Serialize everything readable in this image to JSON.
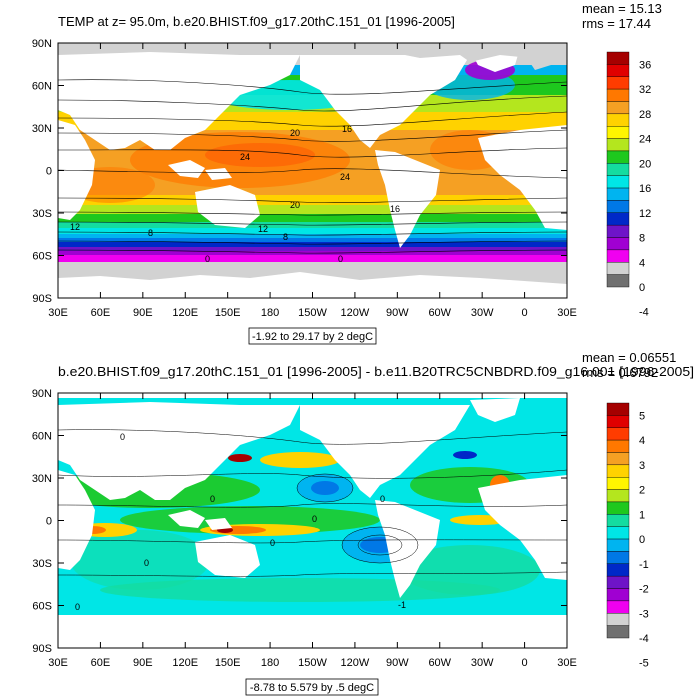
{
  "chart_data": [
    {
      "type": "heatmap",
      "title": "TEMP at z=  95.0m, b.e20.BHIST.f09_g17.20thC.151_01 [1996-2005]",
      "stats": {
        "mean": "mean = 15.13",
        "rms": "rms = 17.44"
      },
      "xticks": [
        "30E",
        "60E",
        "90E",
        "120E",
        "150E",
        "180",
        "150W",
        "120W",
        "90W",
        "60W",
        "30W",
        "0",
        "30E"
      ],
      "yticks": [
        "90N",
        "60N",
        "30N",
        "0",
        "30S",
        "60S",
        "90S"
      ],
      "range_label": "-1.92 to 29.17 by 2 degC",
      "colorbar": {
        "labels": [
          "36",
          "32",
          "28",
          "24",
          "20",
          "16",
          "12",
          "8",
          "4",
          "0",
          "-4"
        ],
        "colors": [
          "#a50000",
          "#e00000",
          "#ff3c00",
          "#ff7800",
          "#f5a023",
          "#ffd200",
          "#fff500",
          "#b4e61e",
          "#1ec81e",
          "#14dca0",
          "#00e6e6",
          "#00b4f0",
          "#0078e6",
          "#0028c8",
          "#6e14c8",
          "#a000d2",
          "#f000f0",
          "#d2d2d2",
          "#707070"
        ]
      },
      "contour_labels": [
        "20",
        "16",
        "24",
        "24",
        "20",
        "16",
        "12",
        "8",
        "12",
        "8",
        "0",
        "0"
      ]
    },
    {
      "type": "heatmap",
      "title": "b.e20.BHIST.f09_g17.20thC.151_01 [1996-2005] - b.e11.B20TRC5CNBDRD.f09_g16.001 [1996-2005]",
      "stats": {
        "mean": "mean = 0.06551",
        "rms": "rms = 0.6792"
      },
      "xticks": [
        "30E",
        "60E",
        "90E",
        "120E",
        "150E",
        "180",
        "150W",
        "120W",
        "90W",
        "60W",
        "30W",
        "0",
        "30E"
      ],
      "yticks": [
        "90N",
        "60N",
        "30N",
        "0",
        "30S",
        "60S",
        "90S"
      ],
      "range_label": "-8.78 to 5.579 by .5 degC",
      "colorbar": {
        "labels": [
          "5",
          "4",
          "3",
          "2",
          "1",
          "0",
          "-1",
          "-2",
          "-3",
          "-4",
          "-5"
        ],
        "colors": [
          "#a50000",
          "#e00000",
          "#ff3c00",
          "#ff7800",
          "#f5a023",
          "#ffd200",
          "#fff500",
          "#b4e61e",
          "#1ec81e",
          "#14dca0",
          "#00e6e6",
          "#00b4f0",
          "#0078e6",
          "#0028c8",
          "#6e14c8",
          "#a000d2",
          "#f000f0",
          "#d2d2d2",
          "#707070"
        ]
      },
      "contour_labels": [
        "0",
        "0",
        "0",
        "0",
        "0",
        "0",
        "0",
        "-1"
      ]
    }
  ]
}
